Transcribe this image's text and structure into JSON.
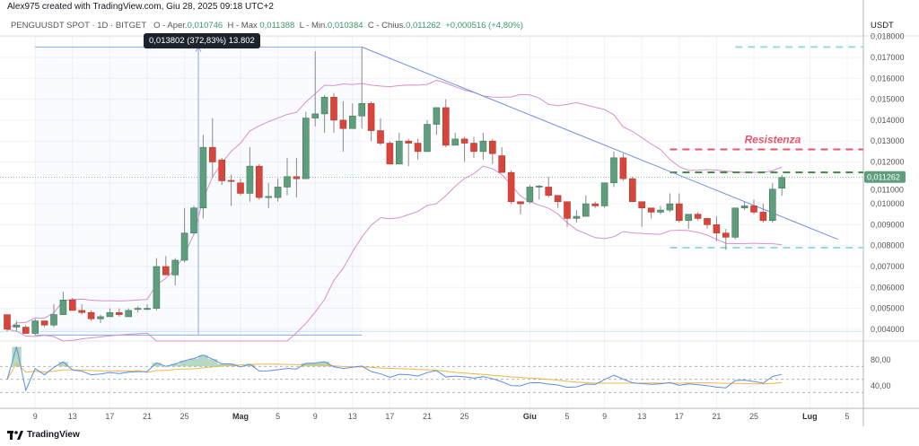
{
  "header": {
    "text": "Alex975 created with TradingView.com, Giu 28, 2025 09:18 UTC+2"
  },
  "legend": {
    "symbol": "PENGUUSDT SPOT · 1D · BITGET",
    "open_label": "O - Aper.",
    "open": "0,010746",
    "high_label": "H - Max",
    "high": "0,011388",
    "low_label": "L - Min.",
    "low": "0,010384",
    "close_label": "C - Chius.",
    "close": "0,011262",
    "change": "+0,000516 (+4,80%)"
  },
  "measure_tooltip": "0,013802 (372,83%) 13.802",
  "price_axis": {
    "unit": "USDT",
    "current_price_tag": "0,011262",
    "current_price": 0.011262
  },
  "annotation": {
    "label": "Resistenza"
  },
  "footer": {
    "brand": "TradingView"
  },
  "colors": {
    "up": "#5f9e7d",
    "down": "#d9453a",
    "bollinger": "#d98fcf",
    "trendline": "#6f8fe0",
    "rsi": "#5a8ee8",
    "rsi_ma": "#f0b54a",
    "resistance": "#e8546b",
    "support_green": "#3c8a3c",
    "level_cyan": "#9adbe0"
  },
  "chart_data": {
    "type": "candlestick",
    "symbol": "PENGUUSDT",
    "ylim": [
      0.0035,
      0.0182
    ],
    "y_ticks": [
      {
        "v": 0.018,
        "label": "0,018000"
      },
      {
        "v": 0.017,
        "label": "0,017000"
      },
      {
        "v": 0.016,
        "label": "0,016000"
      },
      {
        "v": 0.015,
        "label": "0,015000"
      },
      {
        "v": 0.014,
        "label": "0,014000"
      },
      {
        "v": 0.013,
        "label": "0,013000"
      },
      {
        "v": 0.012,
        "label": "0,012000"
      },
      {
        "v": 0.011,
        "label": "0,011000"
      },
      {
        "v": 0.01,
        "label": "0,010000"
      },
      {
        "v": 0.009,
        "label": "0,009000"
      },
      {
        "v": 0.008,
        "label": "0,008000"
      },
      {
        "v": 0.007,
        "label": "0,007000"
      },
      {
        "v": 0.006,
        "label": "0,006000"
      },
      {
        "v": 0.005,
        "label": "0,005000"
      },
      {
        "v": 0.004,
        "label": "0,004000"
      }
    ],
    "x_ticks": [
      {
        "date": "2025-04-09",
        "label": "9"
      },
      {
        "date": "2025-04-13",
        "label": "13"
      },
      {
        "date": "2025-04-17",
        "label": "17"
      },
      {
        "date": "2025-04-21",
        "label": "21"
      },
      {
        "date": "2025-04-25",
        "label": "25"
      },
      {
        "date": "2025-05-01",
        "label": "Mag"
      },
      {
        "date": "2025-05-05",
        "label": "5"
      },
      {
        "date": "2025-05-09",
        "label": "9"
      },
      {
        "date": "2025-05-13",
        "label": "13"
      },
      {
        "date": "2025-05-17",
        "label": "17"
      },
      {
        "date": "2025-05-21",
        "label": "21"
      },
      {
        "date": "2025-05-25",
        "label": "25"
      },
      {
        "date": "2025-06-01",
        "label": "Giu"
      },
      {
        "date": "2025-06-05",
        "label": "5"
      },
      {
        "date": "2025-06-09",
        "label": "9"
      },
      {
        "date": "2025-06-13",
        "label": "13"
      },
      {
        "date": "2025-06-17",
        "label": "17"
      },
      {
        "date": "2025-06-21",
        "label": "21"
      },
      {
        "date": "2025-06-25",
        "label": "25"
      },
      {
        "date": "2025-07-01",
        "label": "Lug"
      },
      {
        "date": "2025-07-05",
        "label": "5"
      }
    ],
    "candles_columns": [
      "date",
      "open",
      "high",
      "low",
      "close"
    ],
    "candles": [
      [
        "2025-04-06",
        0.0047,
        0.0047,
        0.0039,
        0.004
      ],
      [
        "2025-04-07",
        0.0041,
        0.0044,
        0.0039,
        0.0042
      ],
      [
        "2025-04-08",
        0.0041,
        0.0042,
        0.0038,
        0.0038
      ],
      [
        "2025-04-09",
        0.0038,
        0.0045,
        0.0037,
        0.0044
      ],
      [
        "2025-04-10",
        0.0044,
        0.0044,
        0.0041,
        0.0042
      ],
      [
        "2025-04-11",
        0.0042,
        0.0052,
        0.0041,
        0.0047
      ],
      [
        "2025-04-12",
        0.0047,
        0.0058,
        0.0047,
        0.0054
      ],
      [
        "2025-04-13",
        0.0054,
        0.0055,
        0.0049,
        0.0049
      ],
      [
        "2025-04-14",
        0.0049,
        0.0052,
        0.0047,
        0.0048
      ],
      [
        "2025-04-15",
        0.0048,
        0.0049,
        0.0044,
        0.0045
      ],
      [
        "2025-04-16",
        0.0045,
        0.0047,
        0.0043,
        0.0046
      ],
      [
        "2025-04-17",
        0.0046,
        0.005,
        0.0046,
        0.0048
      ],
      [
        "2025-04-18",
        0.0048,
        0.005,
        0.0046,
        0.0047
      ],
      [
        "2025-04-19",
        0.0046,
        0.005,
        0.0046,
        0.0049
      ],
      [
        "2025-04-20",
        0.00495,
        0.0051,
        0.0048,
        0.005
      ],
      [
        "2025-04-21",
        0.00495,
        0.0052,
        0.0049,
        0.005
      ],
      [
        "2025-04-22",
        0.005,
        0.0074,
        0.0049,
        0.007
      ],
      [
        "2025-04-23",
        0.007,
        0.0075,
        0.0066,
        0.0066
      ],
      [
        "2025-04-24",
        0.0066,
        0.0074,
        0.0061,
        0.0073
      ],
      [
        "2025-04-25",
        0.0073,
        0.0098,
        0.0072,
        0.0086
      ],
      [
        "2025-04-26",
        0.0086,
        0.0099,
        0.0085,
        0.0098
      ],
      [
        "2025-04-27",
        0.0098,
        0.0133,
        0.0093,
        0.0127
      ],
      [
        "2025-04-28",
        0.0127,
        0.0141,
        0.0113,
        0.012
      ],
      [
        "2025-04-29",
        0.0121,
        0.0122,
        0.0109,
        0.0111
      ],
      [
        "2025-04-30",
        0.01112,
        0.0114,
        0.0099,
        0.01108
      ],
      [
        "2025-05-01",
        0.011,
        0.0112,
        0.0104,
        0.0105
      ],
      [
        "2025-05-02",
        0.0105,
        0.0127,
        0.0101,
        0.0118
      ],
      [
        "2025-05-03",
        0.0118,
        0.0119,
        0.0102,
        0.0103
      ],
      [
        "2025-05-04",
        0.0103,
        0.011,
        0.0098,
        0.01035
      ],
      [
        "2025-05-05",
        0.0103,
        0.0112,
        0.0101,
        0.0108
      ],
      [
        "2025-05-06",
        0.0108,
        0.0122,
        0.0104,
        0.0113
      ],
      [
        "2025-05-07",
        0.0113,
        0.0122,
        0.0103,
        0.0112
      ],
      [
        "2025-05-08",
        0.0112,
        0.0144,
        0.0112,
        0.0141
      ],
      [
        "2025-05-09",
        0.0141,
        0.0173,
        0.0137,
        0.0143
      ],
      [
        "2025-05-10",
        0.0143,
        0.0152,
        0.0134,
        0.0151
      ],
      [
        "2025-05-11",
        0.0151,
        0.0153,
        0.0134,
        0.014
      ],
      [
        "2025-05-12",
        0.014,
        0.0149,
        0.0125,
        0.0136
      ],
      [
        "2025-05-13",
        0.0136,
        0.0148,
        0.0136,
        0.0142
      ],
      [
        "2025-05-14",
        0.0142,
        0.0175,
        0.0136,
        0.0148
      ],
      [
        "2025-05-15",
        0.0148,
        0.0149,
        0.013,
        0.0135
      ],
      [
        "2025-05-16",
        0.0135,
        0.0141,
        0.0128,
        0.0129
      ],
      [
        "2025-05-17",
        0.0129,
        0.013,
        0.0119,
        0.0119
      ],
      [
        "2025-05-18",
        0.0119,
        0.0134,
        0.0119,
        0.013
      ],
      [
        "2025-05-19",
        0.013,
        0.0131,
        0.0118,
        0.0129
      ],
      [
        "2025-05-20",
        0.0129,
        0.0131,
        0.0121,
        0.0125
      ],
      [
        "2025-05-21",
        0.0125,
        0.014,
        0.0125,
        0.0138
      ],
      [
        "2025-05-22",
        0.0138,
        0.0146,
        0.0133,
        0.0146
      ],
      [
        "2025-05-23",
        0.0146,
        0.015,
        0.0127,
        0.0128
      ],
      [
        "2025-05-24",
        0.0128,
        0.0134,
        0.0128,
        0.0131
      ],
      [
        "2025-05-25",
        0.0131,
        0.0132,
        0.012,
        0.0129
      ],
      [
        "2025-05-26",
        0.0129,
        0.0132,
        0.0122,
        0.0125
      ],
      [
        "2025-05-27",
        0.0125,
        0.0134,
        0.0121,
        0.013
      ],
      [
        "2025-05-28",
        0.013,
        0.0131,
        0.0119,
        0.0124
      ],
      [
        "2025-05-29",
        0.0123,
        0.0127,
        0.0115,
        0.0115
      ],
      [
        "2025-05-30",
        0.0115,
        0.0116,
        0.01,
        0.0101
      ],
      [
        "2025-05-31",
        0.0101,
        0.0101,
        0.0095,
        0.01
      ],
      [
        "2025-06-01",
        0.0101,
        0.0109,
        0.01,
        0.0108
      ],
      [
        "2025-06-02",
        0.0108,
        0.0109,
        0.0102,
        0.01085
      ],
      [
        "2025-06-03",
        0.0108,
        0.0113,
        0.0103,
        0.0104
      ],
      [
        "2025-06-04",
        0.0104,
        0.0104,
        0.0098,
        0.0101
      ],
      [
        "2025-06-05",
        0.0101,
        0.0101,
        0.0089,
        0.0093
      ],
      [
        "2025-06-06",
        0.0093,
        0.0097,
        0.0091,
        0.0094
      ],
      [
        "2025-06-07",
        0.0094,
        0.0104,
        0.0094,
        0.01
      ],
      [
        "2025-06-08",
        0.01,
        0.0101,
        0.0098,
        0.0099
      ],
      [
        "2025-06-09",
        0.0099,
        0.011,
        0.0098,
        0.011
      ],
      [
        "2025-06-10",
        0.011,
        0.0125,
        0.0108,
        0.0122
      ],
      [
        "2025-06-11",
        0.0122,
        0.0124,
        0.0111,
        0.0112
      ],
      [
        "2025-06-12",
        0.0112,
        0.0113,
        0.0101,
        0.0101
      ],
      [
        "2025-06-13",
        0.0101,
        0.0101,
        0.0089,
        0.0098
      ],
      [
        "2025-06-14",
        0.0098,
        0.0098,
        0.0093,
        0.0096
      ],
      [
        "2025-06-15",
        0.0096,
        0.0099,
        0.0095,
        0.0097
      ],
      [
        "2025-06-16",
        0.0097,
        0.0105,
        0.0096,
        0.01
      ],
      [
        "2025-06-17",
        0.01,
        0.0105,
        0.0091,
        0.0092
      ],
      [
        "2025-06-18",
        0.0092,
        0.0095,
        0.0088,
        0.0095
      ],
      [
        "2025-06-19",
        0.0095,
        0.0096,
        0.0092,
        0.0093
      ],
      [
        "2025-06-20",
        0.0093,
        0.0093,
        0.0088,
        0.009
      ],
      [
        "2025-06-21",
        0.009,
        0.0094,
        0.0082,
        0.0086
      ],
      [
        "2025-06-22",
        0.0086,
        0.0088,
        0.0078,
        0.0084
      ],
      [
        "2025-06-23",
        0.0084,
        0.0098,
        0.0083,
        0.0098
      ],
      [
        "2025-06-24",
        0.0098,
        0.0101,
        0.0097,
        0.0099
      ],
      [
        "2025-06-25",
        0.0099,
        0.0102,
        0.0095,
        0.0096
      ],
      [
        "2025-06-26",
        0.0096,
        0.01,
        0.0091,
        0.0092
      ],
      [
        "2025-06-27",
        0.0092,
        0.011,
        0.0091,
        0.0107
      ],
      [
        "2025-06-28",
        0.010746,
        0.011388,
        0.010384,
        0.011262
      ]
    ],
    "indicators": {
      "bollinger_bands": {
        "period": 20,
        "stddev": 2
      },
      "oscillator": {
        "type": "RSI",
        "period": 14,
        "ma_period": 14,
        "ylim": [
          10,
          100
        ],
        "y_ticks": [
          {
            "v": 80,
            "label": "80,00"
          },
          {
            "v": 40,
            "label": "40,00"
          }
        ],
        "levels": [
          70,
          50,
          30
        ]
      }
    },
    "drawings": {
      "trendline": {
        "from": [
          "2025-05-14",
          0.0175
        ],
        "to": [
          "2025-07-04",
          0.0083
        ]
      },
      "measure": {
        "from": [
          "2025-04-09",
          0.00372
        ],
        "to": [
          "2025-05-14",
          0.0175
        ],
        "arrow_date": "2025-04-26"
      },
      "levels": [
        {
          "name": "resistance",
          "price": 0.0126,
          "from": "2025-06-16",
          "color": "#e8546b"
        },
        {
          "name": "green-level",
          "price": 0.0115,
          "from": "2025-06-16",
          "color": "#3c8a3c"
        },
        {
          "name": "cyan-top",
          "price": 0.0175,
          "from": "2025-06-23",
          "color": "#9adbe0"
        },
        {
          "name": "cyan-bottom",
          "price": 0.0079,
          "from": "2025-06-16",
          "color": "#9adbe0"
        }
      ]
    }
  }
}
